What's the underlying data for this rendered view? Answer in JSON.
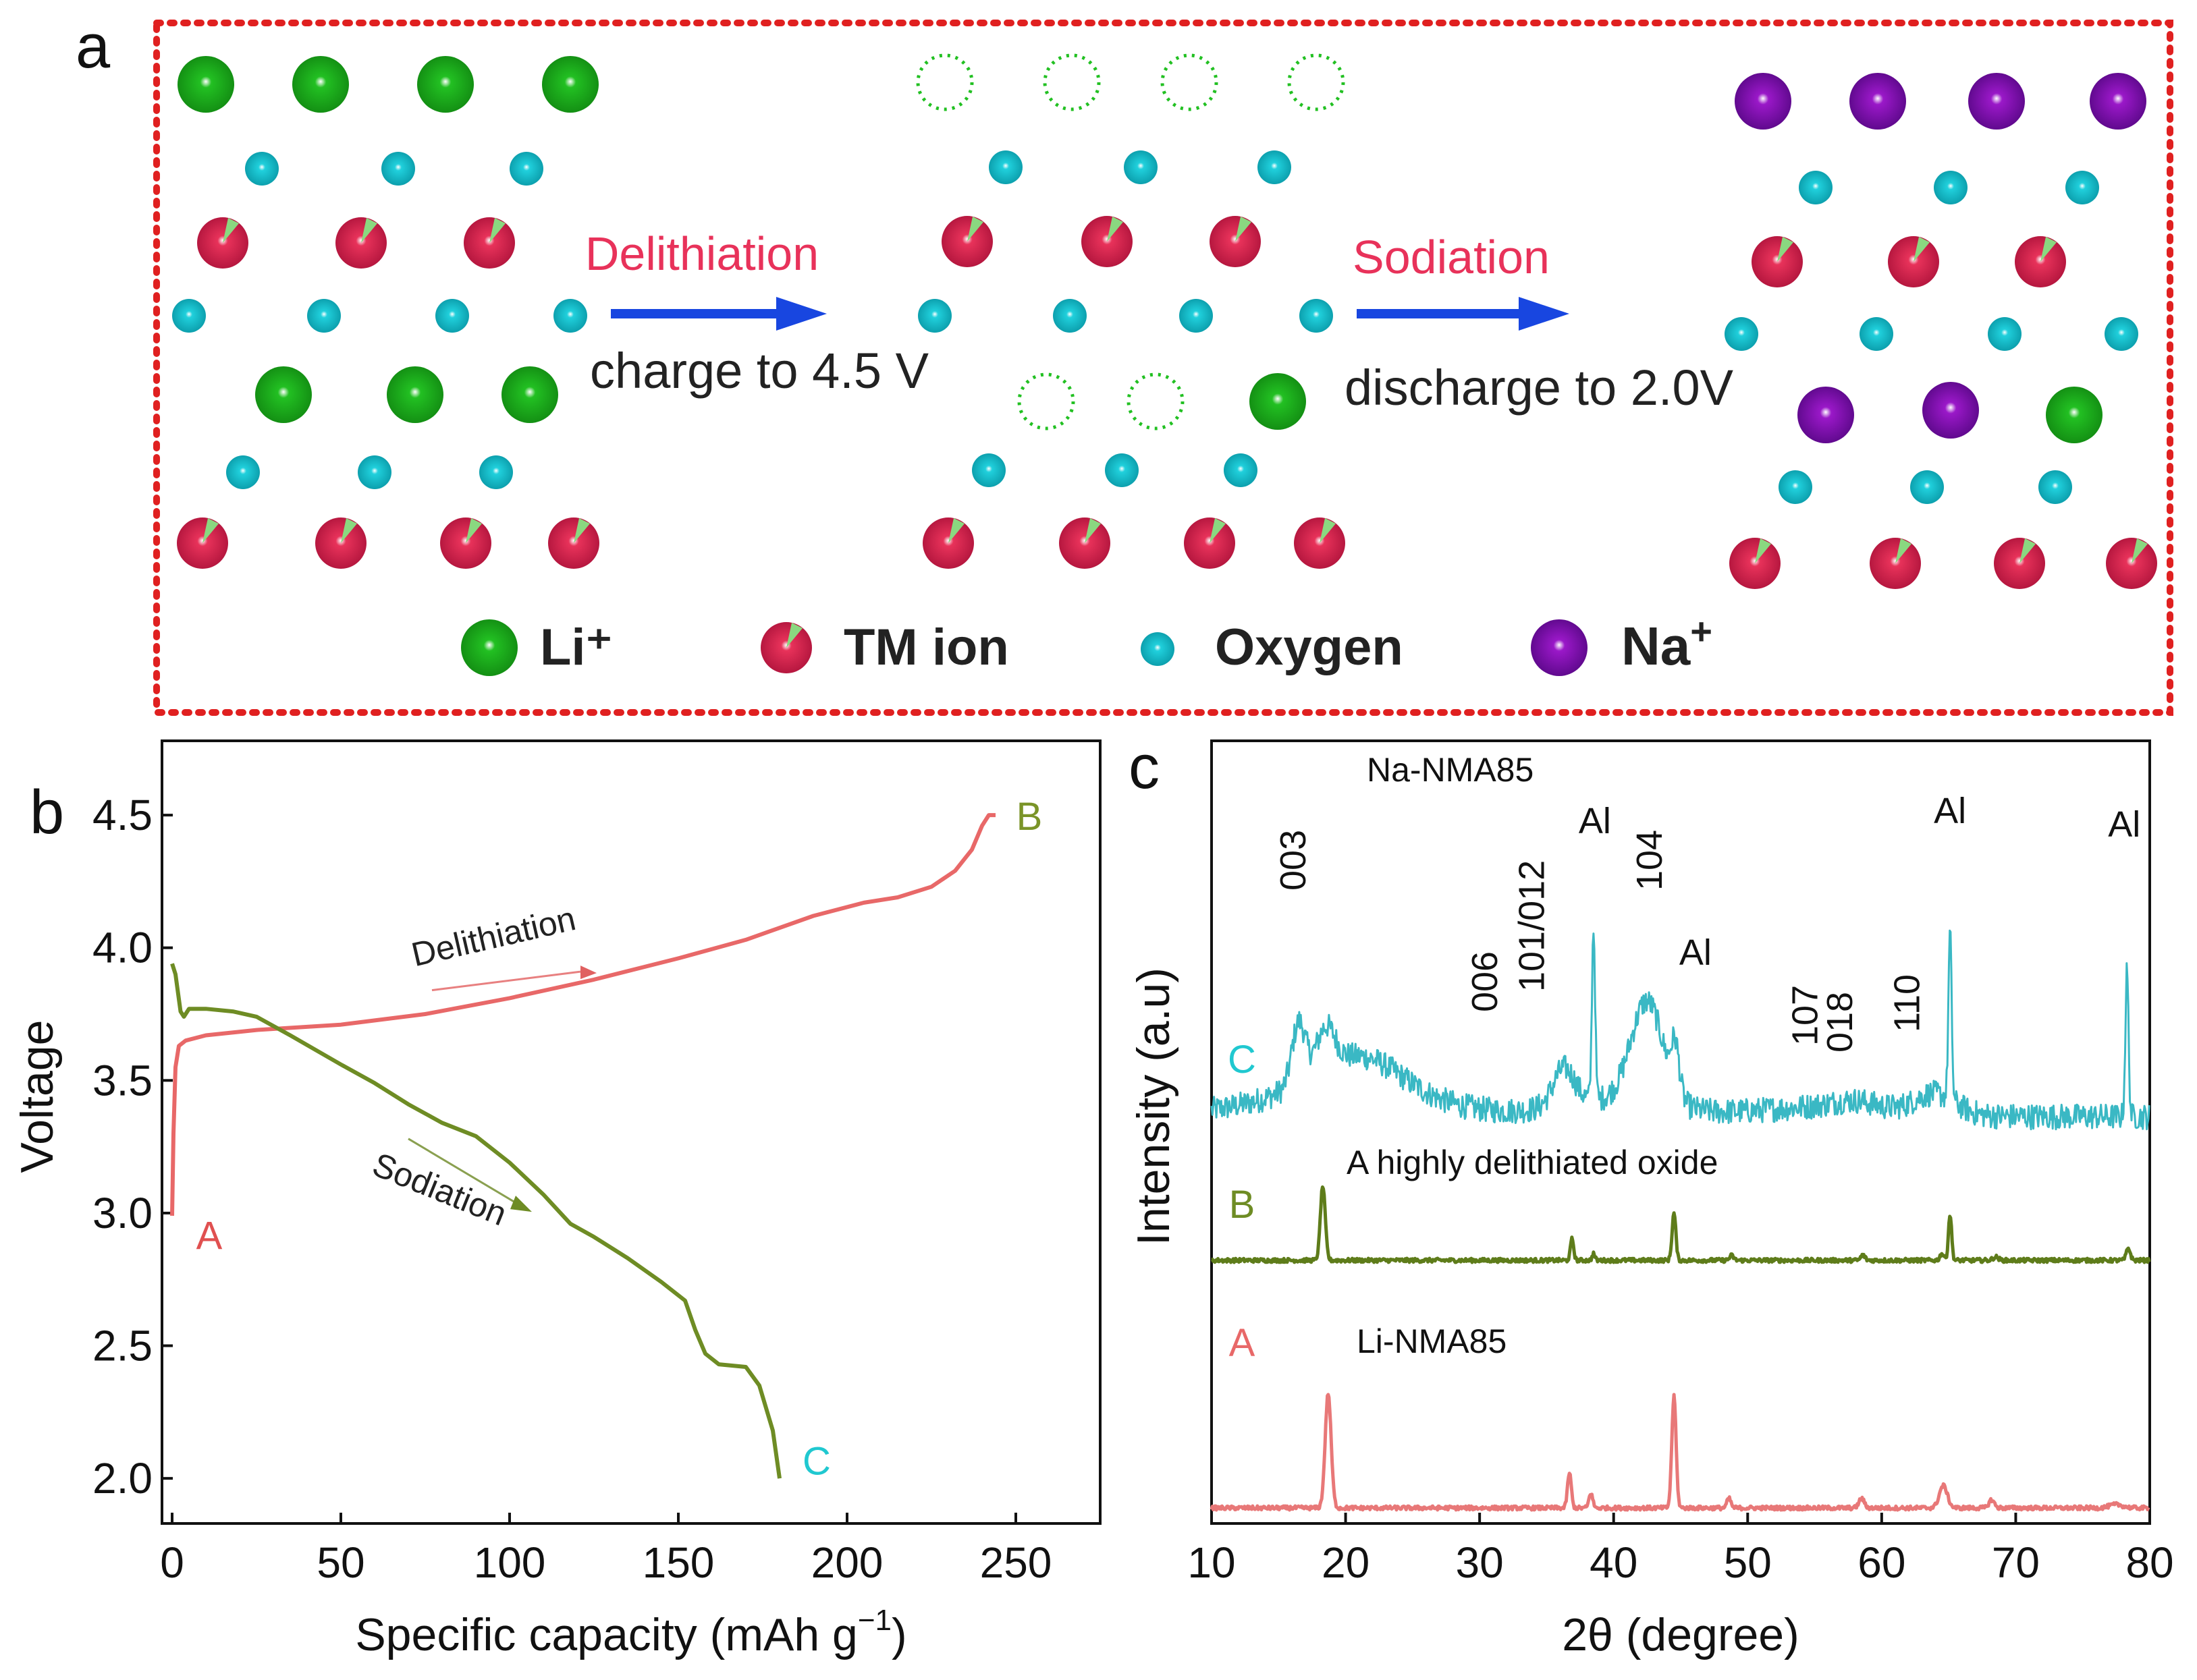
{
  "panel_labels": {
    "a": "a",
    "b": "b",
    "c": "c"
  },
  "schematic": {
    "step1_label": "Delithiation",
    "step1_condition": "charge to 4.5 V",
    "step2_label": "Sodiation",
    "step2_condition": "discharge to 2.0V",
    "legend": [
      {
        "key": "li",
        "label": "Li⁺",
        "sup": ""
      },
      {
        "key": "tm",
        "label": "TM ion",
        "sup": ""
      },
      {
        "key": "oxygen",
        "label": "Oxygen",
        "sup": ""
      },
      {
        "key": "na",
        "label": "Na",
        "sup": "+"
      }
    ],
    "colors": {
      "li": "#22c022",
      "tm": "#e8325a",
      "oxygen": "#20d0dc",
      "na": "#9a18c8",
      "arrow": "#1846e0",
      "label": "#e8325a",
      "frame": "#e02020"
    }
  },
  "chart_data": [
    {
      "type": "line",
      "title": "",
      "xlabel": "Specific capacity (mAh g",
      "xlabel_sup": "−1",
      "xlabel_end": ")",
      "ylabel": "Voltage",
      "xlim": [
        -3,
        275
      ],
      "ylim": [
        1.83,
        4.78
      ],
      "xticks": [
        0,
        50,
        100,
        150,
        200,
        250
      ],
      "yticks": [
        "2.0",
        "2.5",
        "3.0",
        "3.5",
        "4.0",
        "4.5"
      ],
      "series": [
        {
          "name": "Delithiation",
          "color": "#e86868",
          "points": [
            [
              0,
              2.99
            ],
            [
              0.4,
              3.3
            ],
            [
              1,
              3.55
            ],
            [
              2,
              3.63
            ],
            [
              4,
              3.65
            ],
            [
              10,
              3.67
            ],
            [
              25,
              3.69
            ],
            [
              50,
              3.71
            ],
            [
              75,
              3.75
            ],
            [
              100,
              3.81
            ],
            [
              125,
              3.88
            ],
            [
              150,
              3.96
            ],
            [
              170,
              4.03
            ],
            [
              190,
              4.12
            ],
            [
              205,
              4.17
            ],
            [
              215,
              4.19
            ],
            [
              225,
              4.23
            ],
            [
              232,
              4.29
            ],
            [
              237,
              4.37
            ],
            [
              240,
              4.46
            ],
            [
              242,
              4.5
            ],
            [
              244,
              4.5
            ]
          ]
        },
        {
          "name": "Sodiation",
          "color": "#6e8c24",
          "points": [
            [
              0,
              3.94
            ],
            [
              1,
              3.9
            ],
            [
              2.5,
              3.76
            ],
            [
              3.5,
              3.74
            ],
            [
              5,
              3.77
            ],
            [
              10,
              3.77
            ],
            [
              18,
              3.76
            ],
            [
              25,
              3.74
            ],
            [
              35,
              3.67
            ],
            [
              50,
              3.56
            ],
            [
              60,
              3.49
            ],
            [
              70,
              3.41
            ],
            [
              80,
              3.34
            ],
            [
              90,
              3.29
            ],
            [
              100,
              3.19
            ],
            [
              110,
              3.07
            ],
            [
              118,
              2.96
            ],
            [
              125,
              2.91
            ],
            [
              135,
              2.83
            ],
            [
              145,
              2.74
            ],
            [
              152,
              2.67
            ],
            [
              155,
              2.56
            ],
            [
              158,
              2.47
            ],
            [
              162,
              2.43
            ],
            [
              170,
              2.42
            ],
            [
              174,
              2.35
            ],
            [
              178,
              2.18
            ],
            [
              180,
              2.0
            ]
          ]
        }
      ],
      "point_labels": [
        {
          "text": "A",
          "x": 11,
          "y": 2.92,
          "color": "#e05050"
        },
        {
          "text": "B",
          "x": 254,
          "y": 4.5,
          "color": "#7a9428"
        },
        {
          "text": "C",
          "x": 191,
          "y": 2.07,
          "color": "#20c8d0"
        }
      ],
      "annotations": [
        {
          "text": "Delithiation",
          "x": 96,
          "y": 4.0,
          "angle": -13
        },
        {
          "text": "Sodiation",
          "x": 78,
          "y": 3.05,
          "angle": 22
        }
      ]
    },
    {
      "type": "line",
      "title": "",
      "xlabel": "2θ (degree)",
      "ylabel": "Intensity (a.u)",
      "xlim": [
        10,
        80
      ],
      "xticks": [
        10,
        20,
        30,
        40,
        50,
        60,
        70,
        80
      ],
      "yticks": [],
      "series": [
        {
          "name": "C",
          "label": "C",
          "description": "Na-NMA85",
          "color": "#3ab8c4",
          "baseline": 0,
          "peaks": [
            [
              16.5,
              90,
              0.5
            ],
            [
              18.5,
              60,
              0.7
            ],
            [
              21,
              50,
              3
            ],
            [
              36.3,
              55,
              0.8
            ],
            [
              38.5,
              255,
              0.12
            ],
            [
              42.5,
              150,
              1.2
            ],
            [
              44.6,
              70,
              0.3
            ],
            [
              58,
              10,
              1.5
            ],
            [
              64,
              30,
              1.5
            ],
            [
              65.1,
              245,
              0.12
            ],
            [
              78.3,
              215,
              0.12
            ]
          ],
          "background": "rise"
        },
        {
          "name": "B",
          "label": "B",
          "description": "A highly delithiated oxide",
          "color": "#5e7c1a",
          "baseline": 0,
          "peaks": [
            [
              18.3,
              110,
              0.18
            ],
            [
              36.9,
              32,
              0.12
            ],
            [
              38.5,
              10,
              0.1
            ],
            [
              44.5,
              70,
              0.14
            ],
            [
              48.8,
              7,
              0.15
            ],
            [
              58.6,
              8,
              0.15
            ],
            [
              64.5,
              10,
              0.15
            ],
            [
              65.1,
              68,
              0.12
            ],
            [
              68.5,
              5,
              0.2
            ],
            [
              78.4,
              18,
              0.15
            ]
          ]
        },
        {
          "name": "A",
          "label": "A",
          "description": "Li-NMA85",
          "color": "#e87878",
          "baseline": 0,
          "peaks": [
            [
              18.7,
              170,
              0.22
            ],
            [
              36.7,
              52,
              0.14
            ],
            [
              38.3,
              22,
              0.14
            ],
            [
              44.5,
              165,
              0.16
            ],
            [
              48.6,
              14,
              0.15
            ],
            [
              58.5,
              14,
              0.2
            ],
            [
              64.6,
              33,
              0.3
            ],
            [
              68.2,
              12,
              0.2
            ],
            [
              77.5,
              5,
              0.5
            ]
          ]
        }
      ],
      "peak_labels": [
        {
          "text": "003",
          "x": 17.0,
          "y": 1320
        },
        {
          "text": "006",
          "x": 31.3,
          "y": 1500
        },
        {
          "text": "101/012",
          "x": 34.8,
          "y": 1470
        },
        {
          "text": "Al",
          "x": 38.6,
          "y": 1235
        },
        {
          "text": "104",
          "x": 43.6,
          "y": 1320
        },
        {
          "text": "Al",
          "x": 46.1,
          "y": 1430
        },
        {
          "text": "107",
          "x": 55.2,
          "y": 1550
        },
        {
          "text": "018",
          "x": 57.8,
          "y": 1560
        },
        {
          "text": "110",
          "x": 62.8,
          "y": 1530
        },
        {
          "text": "Al",
          "x": 65.1,
          "y": 1220
        },
        {
          "text": "Al",
          "x": 78.1,
          "y": 1240
        }
      ]
    }
  ]
}
